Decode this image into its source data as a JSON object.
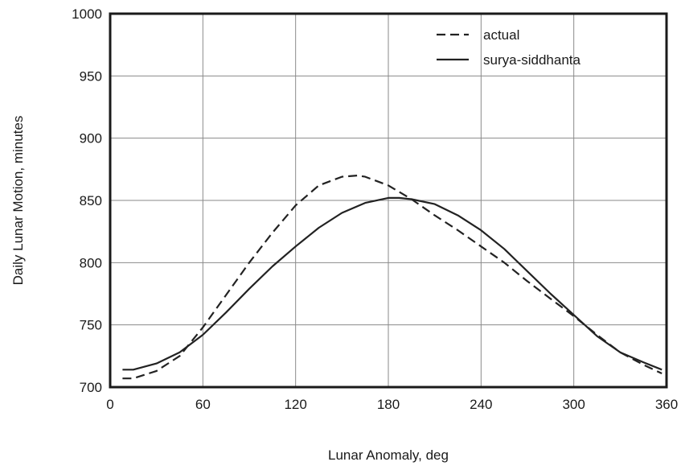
{
  "chart_data": {
    "type": "line",
    "title": "",
    "xlabel": "Lunar Anomaly,  deg",
    "ylabel": "Daily Lunar Motion,  minutes",
    "xlim": [
      0,
      360
    ],
    "ylim": [
      700,
      1000
    ],
    "xticks": [
      0,
      60,
      120,
      180,
      240,
      300,
      360
    ],
    "yticks": [
      700,
      750,
      800,
      850,
      900,
      950,
      1000
    ],
    "grid": true,
    "legend_position": "top-right",
    "series": [
      {
        "name": "actual",
        "style": "dashed",
        "color": "#222222",
        "x": [
          8,
          15,
          30,
          45,
          60,
          75,
          90,
          105,
          120,
          135,
          150,
          160,
          165,
          180,
          195,
          210,
          225,
          240,
          255,
          270,
          285,
          300,
          315,
          330,
          345,
          357
        ],
        "y": [
          707,
          707,
          713,
          725,
          748,
          774,
          800,
          824,
          846,
          862,
          869,
          870,
          869,
          862,
          851,
          838,
          826,
          813,
          800,
          785,
          771,
          757,
          742,
          728,
          718,
          711
        ]
      },
      {
        "name": "surya-siddhanta",
        "style": "solid",
        "color": "#222222",
        "x": [
          8,
          15,
          30,
          45,
          60,
          75,
          90,
          105,
          120,
          135,
          150,
          165,
          180,
          187,
          195,
          210,
          225,
          240,
          255,
          270,
          285,
          300,
          315,
          330,
          345,
          357
        ],
        "y": [
          714,
          714,
          719,
          728,
          742,
          760,
          779,
          797,
          813,
          828,
          840,
          848,
          852,
          852,
          851,
          847,
          838,
          826,
          811,
          793,
          775,
          758,
          741,
          728,
          720,
          714
        ]
      }
    ]
  }
}
